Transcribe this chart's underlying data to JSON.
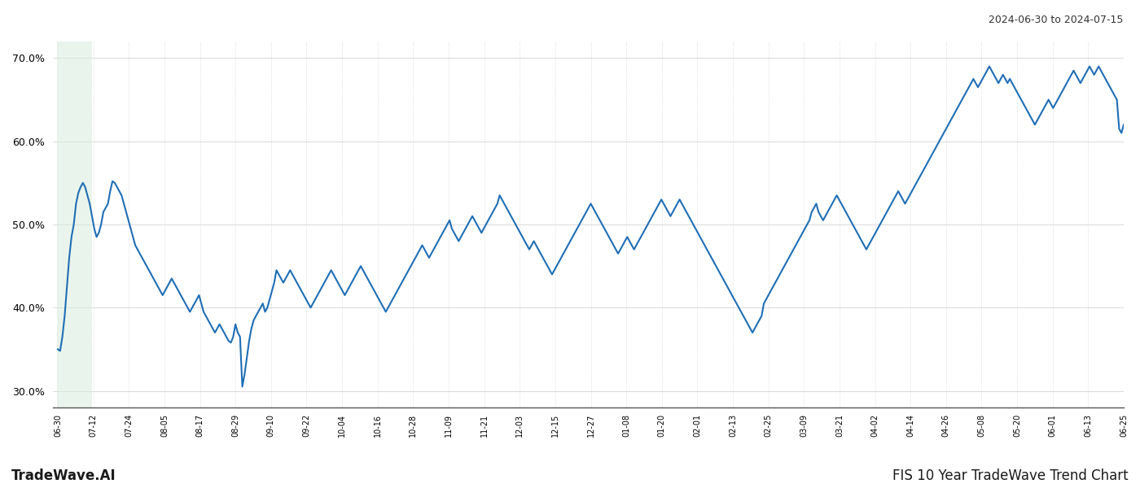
{
  "title_right": "2024-06-30 to 2024-07-15",
  "bottom_left": "TradeWave.AI",
  "bottom_right": "FIS 10 Year TradeWave Trend Chart",
  "line_color": "#1f6eb5",
  "line_width": 1.5,
  "highlight_color": "#d4edda",
  "highlight_alpha": 0.5,
  "highlight_xstart": 0,
  "highlight_xend": 1,
  "ylim": [
    28.0,
    72.0
  ],
  "yticks": [
    30.0,
    40.0,
    50.0,
    60.0,
    70.0
  ],
  "background_color": "#ffffff",
  "grid_color": "#cccccc",
  "x_labels": [
    "06-30",
    "07-12",
    "07-24",
    "08-05",
    "08-17",
    "08-29",
    "09-10",
    "09-22",
    "10-04",
    "10-16",
    "10-28",
    "11-09",
    "11-21",
    "12-03",
    "12-15",
    "12-27",
    "01-08",
    "01-20",
    "02-01",
    "02-13",
    "02-25",
    "03-09",
    "03-21",
    "04-02",
    "04-14",
    "04-26",
    "05-08",
    "05-20",
    "06-01",
    "06-13",
    "06-25"
  ],
  "y_values": [
    35.0,
    34.8,
    36.5,
    39.0,
    42.5,
    46.0,
    48.5,
    50.0,
    52.5,
    53.8,
    54.5,
    55.0,
    54.5,
    53.5,
    52.5,
    51.0,
    49.5,
    48.5,
    49.0,
    50.0,
    51.5,
    52.0,
    52.5,
    54.0,
    55.2,
    55.0,
    54.5,
    54.0,
    53.5,
    52.5,
    51.5,
    50.5,
    49.5,
    48.5,
    47.5,
    47.0,
    46.5,
    46.0,
    45.5,
    45.0,
    44.5,
    44.0,
    43.5,
    43.0,
    42.5,
    42.0,
    41.5,
    42.0,
    42.5,
    43.0,
    43.5,
    43.0,
    42.5,
    42.0,
    41.5,
    41.0,
    40.5,
    40.0,
    39.5,
    40.0,
    40.5,
    41.0,
    41.5,
    40.5,
    39.5,
    39.0,
    38.5,
    38.0,
    37.5,
    37.0,
    37.5,
    38.0,
    37.5,
    37.0,
    36.5,
    36.0,
    35.8,
    36.5,
    38.0,
    37.0,
    36.5,
    30.5,
    32.0,
    34.0,
    36.0,
    37.5,
    38.5,
    39.0,
    39.5,
    40.0,
    40.5,
    39.5,
    40.0,
    41.0,
    42.0,
    43.0,
    44.5,
    44.0,
    43.5,
    43.0,
    43.5,
    44.0,
    44.5,
    44.0,
    43.5,
    43.0,
    42.5,
    42.0,
    41.5,
    41.0,
    40.5,
    40.0,
    40.5,
    41.0,
    41.5,
    42.0,
    42.5,
    43.0,
    43.5,
    44.0,
    44.5,
    44.0,
    43.5,
    43.0,
    42.5,
    42.0,
    41.5,
    42.0,
    42.5,
    43.0,
    43.5,
    44.0,
    44.5,
    45.0,
    44.5,
    44.0,
    43.5,
    43.0,
    42.5,
    42.0,
    41.5,
    41.0,
    40.5,
    40.0,
    39.5,
    40.0,
    40.5,
    41.0,
    41.5,
    42.0,
    42.5,
    43.0,
    43.5,
    44.0,
    44.5,
    45.0,
    45.5,
    46.0,
    46.5,
    47.0,
    47.5,
    47.0,
    46.5,
    46.0,
    46.5,
    47.0,
    47.5,
    48.0,
    48.5,
    49.0,
    49.5,
    50.0,
    50.5,
    49.5,
    49.0,
    48.5,
    48.0,
    48.5,
    49.0,
    49.5,
    50.0,
    50.5,
    51.0,
    50.5,
    50.0,
    49.5,
    49.0,
    49.5,
    50.0,
    50.5,
    51.0,
    51.5,
    52.0,
    52.5,
    53.5,
    53.0,
    52.5,
    52.0,
    51.5,
    51.0,
    50.5,
    50.0,
    49.5,
    49.0,
    48.5,
    48.0,
    47.5,
    47.0,
    47.5,
    48.0,
    47.5,
    47.0,
    46.5,
    46.0,
    45.5,
    45.0,
    44.5,
    44.0,
    44.5,
    45.0,
    45.5,
    46.0,
    46.5,
    47.0,
    47.5,
    48.0,
    48.5,
    49.0,
    49.5,
    50.0,
    50.5,
    51.0,
    51.5,
    52.0,
    52.5,
    52.0,
    51.5,
    51.0,
    50.5,
    50.0,
    49.5,
    49.0,
    48.5,
    48.0,
    47.5,
    47.0,
    46.5,
    47.0,
    47.5,
    48.0,
    48.5,
    48.0,
    47.5,
    47.0,
    47.5,
    48.0,
    48.5,
    49.0,
    49.5,
    50.0,
    50.5,
    51.0,
    51.5,
    52.0,
    52.5,
    53.0,
    52.5,
    52.0,
    51.5,
    51.0,
    51.5,
    52.0,
    52.5,
    53.0,
    52.5,
    52.0,
    51.5,
    51.0,
    50.5,
    50.0,
    49.5,
    49.0,
    48.5,
    48.0,
    47.5,
    47.0,
    46.5,
    46.0,
    45.5,
    45.0,
    44.5,
    44.0,
    43.5,
    43.0,
    42.5,
    42.0,
    41.5,
    41.0,
    40.5,
    40.0,
    39.5,
    39.0,
    38.5,
    38.0,
    37.5,
    37.0,
    37.5,
    38.0,
    38.5,
    39.0,
    40.5,
    41.0,
    41.5,
    42.0,
    42.5,
    43.0,
    43.5,
    44.0,
    44.5,
    45.0,
    45.5,
    46.0,
    46.5,
    47.0,
    47.5,
    48.0,
    48.5,
    49.0,
    49.5,
    50.0,
    50.5,
    51.5,
    52.0,
    52.5,
    51.5,
    51.0,
    50.5,
    51.0,
    51.5,
    52.0,
    52.5,
    53.0,
    53.5,
    53.0,
    52.5,
    52.0,
    51.5,
    51.0,
    50.5,
    50.0,
    49.5,
    49.0,
    48.5,
    48.0,
    47.5,
    47.0,
    47.5,
    48.0,
    48.5,
    49.0,
    49.5,
    50.0,
    50.5,
    51.0,
    51.5,
    52.0,
    52.5,
    53.0,
    53.5,
    54.0,
    53.5,
    53.0,
    52.5,
    53.0,
    53.5,
    54.0,
    54.5,
    55.0,
    55.5,
    56.0,
    56.5,
    57.0,
    57.5,
    58.0,
    58.5,
    59.0,
    59.5,
    60.0,
    60.5,
    61.0,
    61.5,
    62.0,
    62.5,
    63.0,
    63.5,
    64.0,
    64.5,
    65.0,
    65.5,
    66.0,
    66.5,
    67.0,
    67.5,
    67.0,
    66.5,
    67.0,
    67.5,
    68.0,
    68.5,
    69.0,
    68.5,
    68.0,
    67.5,
    67.0,
    67.5,
    68.0,
    67.5,
    67.0,
    67.5,
    67.0,
    66.5,
    66.0,
    65.5,
    65.0,
    64.5,
    64.0,
    63.5,
    63.0,
    62.5,
    62.0,
    62.5,
    63.0,
    63.5,
    64.0,
    64.5,
    65.0,
    64.5,
    64.0,
    64.5,
    65.0,
    65.5,
    66.0,
    66.5,
    67.0,
    67.5,
    68.0,
    68.5,
    68.0,
    67.5,
    67.0,
    67.5,
    68.0,
    68.5,
    69.0,
    68.5,
    68.0,
    68.5,
    69.0,
    68.5,
    68.0,
    67.5,
    67.0,
    66.5,
    66.0,
    65.5,
    65.0,
    61.5,
    61.0,
    62.0
  ]
}
